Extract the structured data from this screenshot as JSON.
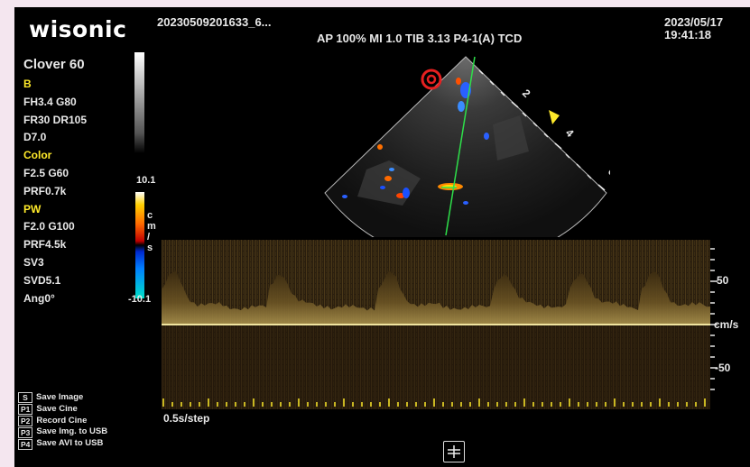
{
  "header": {
    "brand": "wisonic",
    "filename": "20230509201633_6...",
    "params": "AP 100%  MI 1.0  TIB 3.13  P4-1(A)  TCD",
    "date": "2023/05/17",
    "time": "19:41:18"
  },
  "probe": {
    "name": "Clover 60"
  },
  "b_mode": {
    "title": "B",
    "line1": "FH3.4  G80",
    "line2": "FR30  DR105",
    "line3": "D7.0"
  },
  "color_mode": {
    "title": "Color",
    "line1": "F2.5  G60",
    "line2": "PRF0.7k",
    "scale_max": "10.1",
    "scale_min": "-10.1",
    "scale_unit": [
      "c",
      "m",
      "/",
      "s"
    ]
  },
  "pw_mode": {
    "title": "PW",
    "line1": "F2.0  G100",
    "line2": "PRF4.5k",
    "line3": "SV3",
    "line4": "SVD5.1",
    "line5": "Ang0°"
  },
  "depth_marks": [
    "2",
    "4",
    "6"
  ],
  "doppler": {
    "scale_pos": "50",
    "scale_neg": "-50",
    "unit": "cm/s",
    "time_step": "0.5s/step"
  },
  "menu": [
    {
      "key": "S",
      "label": "Save Image"
    },
    {
      "key": "P1",
      "label": "Save Cine"
    },
    {
      "key": "P2",
      "label": "Record Cine"
    },
    {
      "key": "P3",
      "label": "Save Img. to USB"
    },
    {
      "key": "P4",
      "label": "Save AVI to USB"
    }
  ],
  "colors": {
    "accent_yellow": "#ffea2a",
    "background": "#000000",
    "border": "#f4e6ef"
  },
  "icons": {
    "orientation": "orientation-marker-icon",
    "focus": "focus-marker-icon",
    "crosshair": "crosshair-icon"
  }
}
